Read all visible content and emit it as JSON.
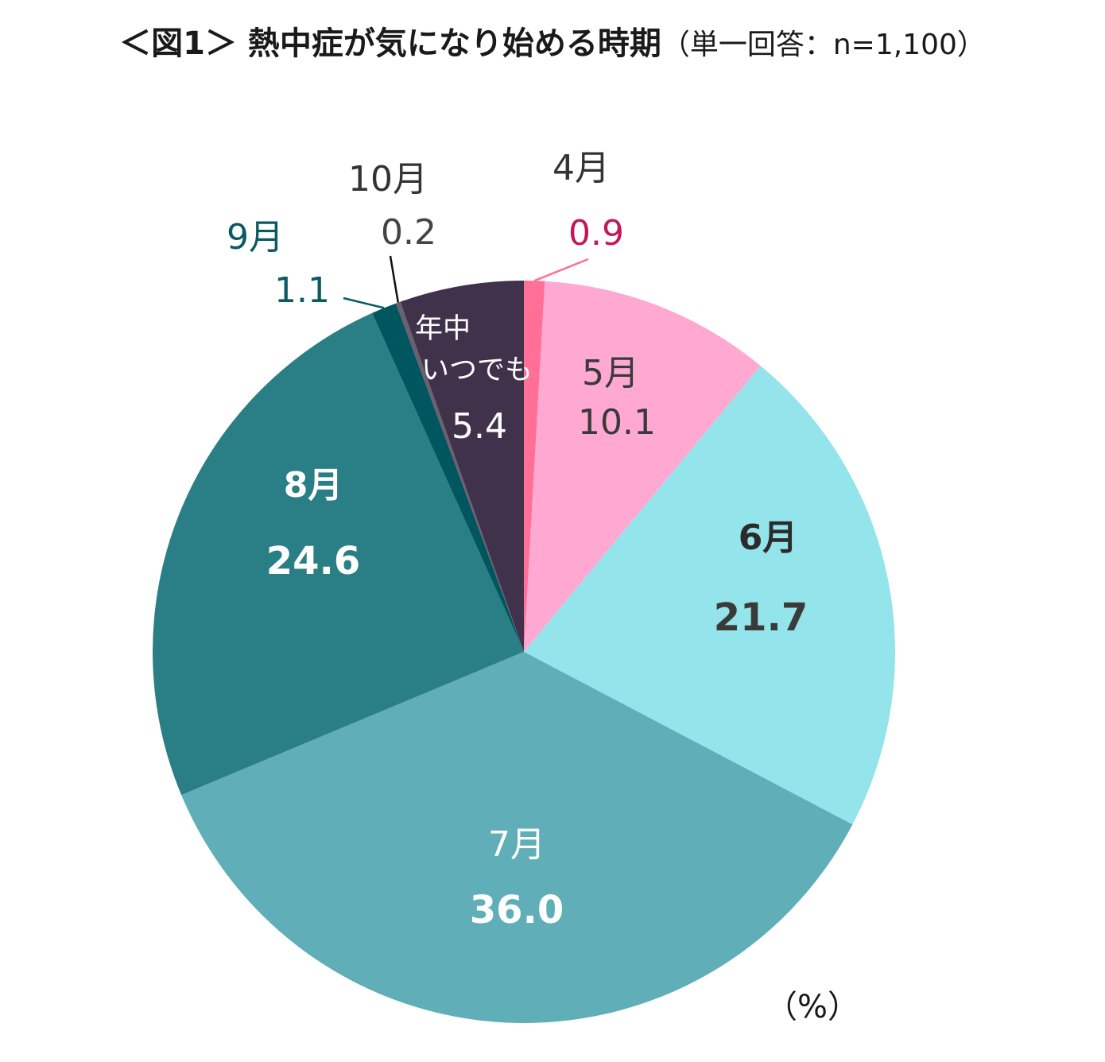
{
  "chart_data": {
    "type": "pie",
    "title": "＜図1＞ 熱中症が気になり始める時期",
    "subtitle": "（単一回答：n=1,100）",
    "unit_label": "（%）",
    "slices": [
      {
        "label": "4月",
        "value": 0.9,
        "value_label": "0.9",
        "color": "#ff6f96",
        "label_color": "#333333",
        "value_color": "#c2185b"
      },
      {
        "label": "5月",
        "value": 10.1,
        "value_label": "10.1",
        "color": "#ffa8d2",
        "label_color": "#3a3a3a",
        "value_color": "#3a3a3a"
      },
      {
        "label": "6月",
        "value": 21.7,
        "value_label": "21.7",
        "color": "#93e4eb",
        "label_color": "#2b2b2b",
        "value_color": "#3a3a3a"
      },
      {
        "label": "7月",
        "value": 36.0,
        "value_label": "36.0",
        "color": "#5faeb8",
        "label_color": "#ffffff",
        "value_color": "#ffffff"
      },
      {
        "label": "8月",
        "value": 24.6,
        "value_label": "24.6",
        "color": "#2a7f87",
        "label_color": "#ffffff",
        "value_color": "#ffffff"
      },
      {
        "label": "9月",
        "value": 1.1,
        "value_label": "1.1",
        "color": "#00565e",
        "label_color": "#0a5a63",
        "value_color": "#0a5a63"
      },
      {
        "label": "10月",
        "value": 0.2,
        "value_label": "0.2",
        "color": "#6b6070",
        "label_color": "#333333",
        "value_color": "#444444"
      },
      {
        "label": "年中いつでも",
        "value": 5.4,
        "value_label": "5.4",
        "color": "#40324a",
        "label_color": "#ffffff",
        "value_color": "#ffffff"
      }
    ]
  }
}
